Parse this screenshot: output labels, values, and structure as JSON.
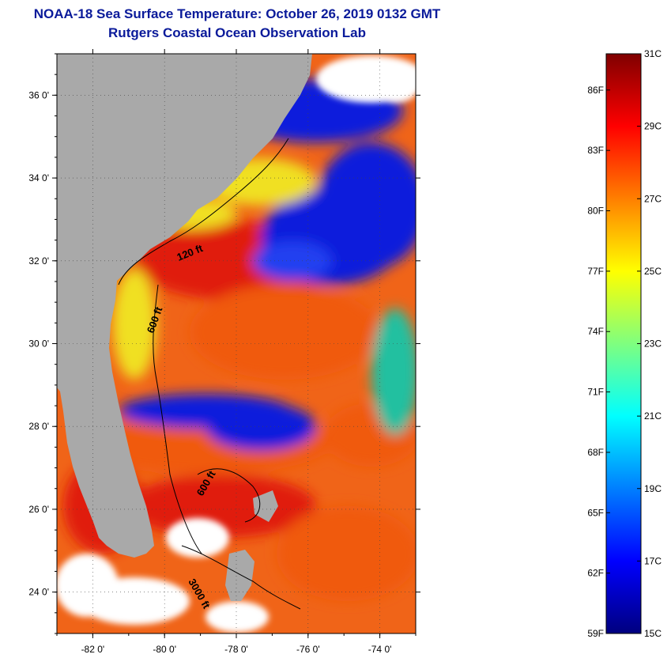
{
  "title": {
    "line1": "NOAA-18 Sea Surface Temperature:  October 26, 2019 0132 GMT",
    "line2": "Rutgers Coastal Ocean Observation Lab"
  },
  "map": {
    "lon_range": [
      -83,
      -73
    ],
    "lat_range": [
      23,
      37
    ],
    "lon_ticks": [
      {
        "value": -82,
        "label": "-82 0'"
      },
      {
        "value": -80,
        "label": "-80 0'"
      },
      {
        "value": -78,
        "label": "-78 0'"
      },
      {
        "value": -76,
        "label": "-76 0'"
      },
      {
        "value": -74,
        "label": "-74 0'"
      }
    ],
    "lat_ticks": [
      {
        "value": 24,
        "label": "24 0'"
      },
      {
        "value": 26,
        "label": "26 0'"
      },
      {
        "value": 28,
        "label": "28 0'"
      },
      {
        "value": 30,
        "label": "30 0'"
      },
      {
        "value": 32,
        "label": "32 0'"
      },
      {
        "value": 34,
        "label": "34 0'"
      },
      {
        "value": 36,
        "label": "36 0'"
      }
    ],
    "contour_labels": [
      "120 ft",
      "600 ft",
      "600 ft",
      "3000 ft"
    ],
    "colors": {
      "land": "#a9a9a9",
      "cloud": "#ffffff",
      "warm": "#f05a10",
      "hot": "#e01e10",
      "cool": "#0a1adc",
      "mild": "#f0e020"
    }
  },
  "colorbar": {
    "celsius": [
      {
        "value": 15,
        "label": "15C"
      },
      {
        "value": 17,
        "label": "17C"
      },
      {
        "value": 19,
        "label": "19C"
      },
      {
        "value": 21,
        "label": "21C"
      },
      {
        "value": 23,
        "label": "23C"
      },
      {
        "value": 25,
        "label": "25C"
      },
      {
        "value": 27,
        "label": "27C"
      },
      {
        "value": 29,
        "label": "29C"
      },
      {
        "value": 31,
        "label": "31C"
      }
    ],
    "fahrenheit": [
      {
        "value": 59,
        "label": "59F"
      },
      {
        "value": 62,
        "label": "62F"
      },
      {
        "value": 65,
        "label": "65F"
      },
      {
        "value": 68,
        "label": "68F"
      },
      {
        "value": 71,
        "label": "71F"
      },
      {
        "value": 74,
        "label": "74F"
      },
      {
        "value": 77,
        "label": "77F"
      },
      {
        "value": 80,
        "label": "80F"
      },
      {
        "value": 83,
        "label": "83F"
      },
      {
        "value": 86,
        "label": "86F"
      }
    ],
    "range_c": [
      15,
      31
    ],
    "stops": [
      "#00007f",
      "#0000ff",
      "#007fff",
      "#00ffff",
      "#7fff7f",
      "#ffff00",
      "#ff7f00",
      "#ff0000",
      "#7f0000"
    ]
  }
}
